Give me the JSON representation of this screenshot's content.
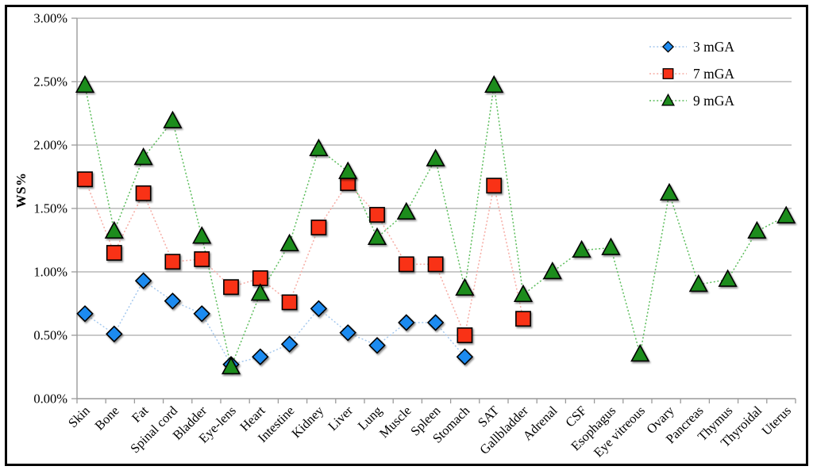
{
  "figure": {
    "background": "#ffffff",
    "border_color": "#000000"
  },
  "chart_data": {
    "type": "line",
    "title": "",
    "xlabel": "",
    "ylabel": "WS%",
    "ylim": [
      0,
      3.0
    ],
    "ytick_step": 0.5,
    "ytick_labels": [
      "0.00%",
      "0.50%",
      "1.00%",
      "1.50%",
      "2.00%",
      "2.50%",
      "3.00%"
    ],
    "grid": "horizontal",
    "legend_position": "top-right",
    "categories": [
      "Skin",
      "Bone",
      "Fat",
      "Spinal cord",
      "Bladder",
      "Eye-lens",
      "Heart",
      "Intestine",
      "Kidney",
      "Liver",
      "Lung",
      "Muscle",
      "Spleen",
      "Stomach",
      "SAT",
      "Gallbladder",
      "Adrenal",
      "CSF",
      "Esophagus",
      "Eye vitreous",
      "Ovary",
      "Pancreas",
      "Thymus",
      "Thyroidal",
      "Uterus"
    ],
    "series": [
      {
        "name": "3 mGA",
        "marker": "diamond",
        "marker_color": "#1e8bf0",
        "line_color": "#a6c9ee",
        "values": [
          0.67,
          0.51,
          0.93,
          0.77,
          0.67,
          0.27,
          0.33,
          0.43,
          0.71,
          0.52,
          0.42,
          0.6,
          0.6,
          0.33,
          null,
          null,
          null,
          null,
          null,
          null,
          null,
          null,
          null,
          null,
          null
        ]
      },
      {
        "name": "7 mGA",
        "marker": "square",
        "marker_color": "#f93117",
        "line_color": "#f6aca4",
        "values": [
          1.73,
          1.15,
          1.62,
          1.08,
          1.1,
          0.88,
          0.95,
          0.76,
          1.35,
          1.7,
          1.45,
          1.06,
          1.06,
          0.5,
          1.68,
          0.63,
          null,
          null,
          null,
          null,
          null,
          null,
          null,
          null,
          null
        ]
      },
      {
        "name": "9 mGA",
        "marker": "triangle",
        "marker_color": "#1f8c1f",
        "line_color": "#5cbd5c",
        "values": [
          2.47,
          1.32,
          1.9,
          2.19,
          1.28,
          0.25,
          0.83,
          1.22,
          1.97,
          1.79,
          1.27,
          1.47,
          1.89,
          0.87,
          2.47,
          0.82,
          1.0,
          1.17,
          1.19,
          0.35,
          1.62,
          0.9,
          0.94,
          1.32,
          1.44
        ]
      }
    ],
    "colors": {
      "grid": "#aaaaaa",
      "axis": "#9a9a9a",
      "text": "#000000"
    }
  }
}
